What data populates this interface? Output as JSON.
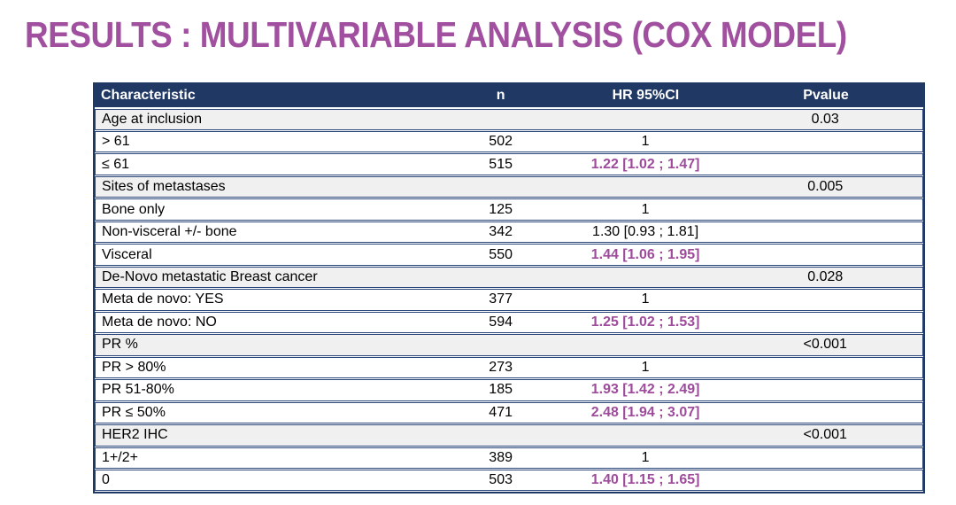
{
  "slide": {
    "title": "RESULTS : MULTIVARIABLE ANALYSIS (COX MODEL)"
  },
  "colors": {
    "title_color": "#A0509E",
    "header_bg": "#1F3864",
    "header_text": "#FFFFFF",
    "border": "#1F3864",
    "row_border": "#2A4579",
    "category_bg": "#F0F0F0",
    "data_bg": "#FFFFFF",
    "sig_color": "#9E4B9C",
    "text": "#000000"
  },
  "chart_data": {
    "type": "table",
    "title": "Multivariable analysis (Cox model)",
    "columns": [
      "Characteristic",
      "n",
      "HR 95%CI",
      "Pvalue"
    ]
  },
  "table": {
    "columns": [
      "Characteristic",
      "n",
      "HR 95%CI",
      "Pvalue"
    ],
    "rows": [
      {
        "type": "category",
        "characteristic": "Age at inclusion",
        "n": "",
        "hr": "",
        "pvalue": "0.03",
        "hr_significant": false
      },
      {
        "type": "data",
        "characteristic": "> 61",
        "n": "502",
        "hr": "1",
        "pvalue": "",
        "hr_significant": false
      },
      {
        "type": "data",
        "characteristic": "≤ 61",
        "n": "515",
        "hr": "1.22 [1.02 ; 1.47]",
        "pvalue": "",
        "hr_significant": true
      },
      {
        "type": "category",
        "characteristic": "Sites of metastases",
        "n": "",
        "hr": "",
        "pvalue": "0.005",
        "hr_significant": false
      },
      {
        "type": "data",
        "characteristic": "Bone only",
        "n": "125",
        "hr": "1",
        "pvalue": "",
        "hr_significant": false
      },
      {
        "type": "data",
        "characteristic": "Non-visceral +/- bone",
        "n": "342",
        "hr": "1.30 [0.93 ; 1.81]",
        "pvalue": "",
        "hr_significant": false
      },
      {
        "type": "data",
        "characteristic": "Visceral",
        "n": "550",
        "hr": "1.44 [1.06 ; 1.95]",
        "pvalue": "",
        "hr_significant": true
      },
      {
        "type": "category",
        "characteristic": "De-Novo metastatic Breast cancer",
        "n": "",
        "hr": "",
        "pvalue": "0.028",
        "hr_significant": false
      },
      {
        "type": "data",
        "characteristic": "Meta de novo: YES",
        "n": "377",
        "hr": "1",
        "pvalue": "",
        "hr_significant": false
      },
      {
        "type": "data",
        "characteristic": "Meta de novo: NO",
        "n": "594",
        "hr": "1.25 [1.02 ; 1.53]",
        "pvalue": "",
        "hr_significant": true
      },
      {
        "type": "category",
        "characteristic": "PR %",
        "n": "",
        "hr": "",
        "pvalue": "<0.001",
        "hr_significant": false
      },
      {
        "type": "data",
        "characteristic": "PR > 80%",
        "n": "273",
        "hr": "1",
        "pvalue": "",
        "hr_significant": false
      },
      {
        "type": "data",
        "characteristic": "PR 51-80%",
        "n": "185",
        "hr": "1.93 [1.42 ; 2.49]",
        "pvalue": "",
        "hr_significant": true
      },
      {
        "type": "data",
        "characteristic": "PR ≤ 50%",
        "n": "471",
        "hr": "2.48 [1.94 ; 3.07]",
        "pvalue": "",
        "hr_significant": true
      },
      {
        "type": "category",
        "characteristic": "HER2 IHC",
        "n": "",
        "hr": "",
        "pvalue": "<0.001",
        "hr_significant": false
      },
      {
        "type": "data",
        "characteristic": "1+/2+",
        "n": "389",
        "hr": "1",
        "pvalue": "",
        "hr_significant": false
      },
      {
        "type": "data",
        "characteristic": "0",
        "n": "503",
        "hr": "1.40 [1.15 ; 1.65]",
        "pvalue": "",
        "hr_significant": true
      }
    ]
  }
}
